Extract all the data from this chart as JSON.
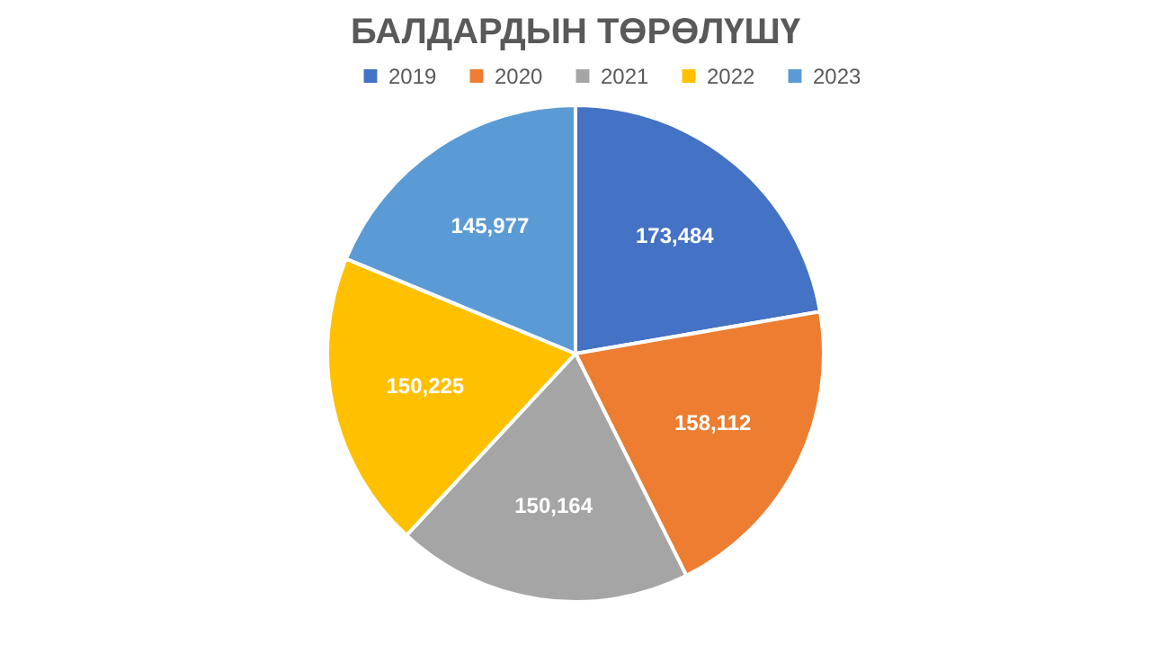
{
  "chart_data": {
    "type": "pie",
    "title": "БАЛДАРДЫН ТӨРӨЛҮШҮ",
    "categories": [
      "2019",
      "2020",
      "2021",
      "2022",
      "2023"
    ],
    "values": [
      173484,
      158112,
      150164,
      150225,
      145977
    ],
    "colors": [
      "#4472c4",
      "#ed7d31",
      "#a5a5a5",
      "#ffc000",
      "#5b9bd5"
    ],
    "value_labels": [
      "173,484",
      "158,112",
      "150,164",
      "150,225",
      "145,977"
    ],
    "legend": "top"
  }
}
